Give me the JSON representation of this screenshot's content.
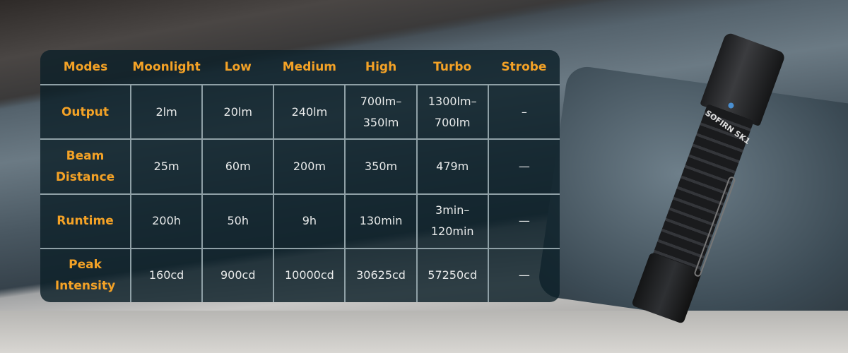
{
  "table": {
    "headers": [
      "Modes",
      "Moonlight",
      "Low",
      "Medium",
      "High",
      "Turbo",
      "Strobe"
    ],
    "rows": [
      {
        "label": "Output",
        "cells": [
          "2lm",
          "20lm",
          "240lm",
          "700lm–\n350lm",
          "1300lm–\n700lm",
          "–"
        ]
      },
      {
        "label": "Beam\nDistance",
        "cells": [
          "25m",
          "60m",
          "200m",
          "350m",
          "479m",
          "—"
        ]
      },
      {
        "label": "Runtime",
        "cells": [
          "200h",
          "50h",
          "9h",
          "130min",
          "3min–\n120min",
          "—"
        ]
      },
      {
        "label": "Peak\nIntensity",
        "cells": [
          "160cd",
          "900cd",
          "10000cd",
          "30625cd",
          "57250cd",
          "—"
        ]
      }
    ]
  },
  "product": {
    "brand_mark": "SOFIRN SK1"
  },
  "colors": {
    "header_text": "#f4a226",
    "cell_text": "#e8eaea",
    "table_bg": "#0c2028"
  }
}
